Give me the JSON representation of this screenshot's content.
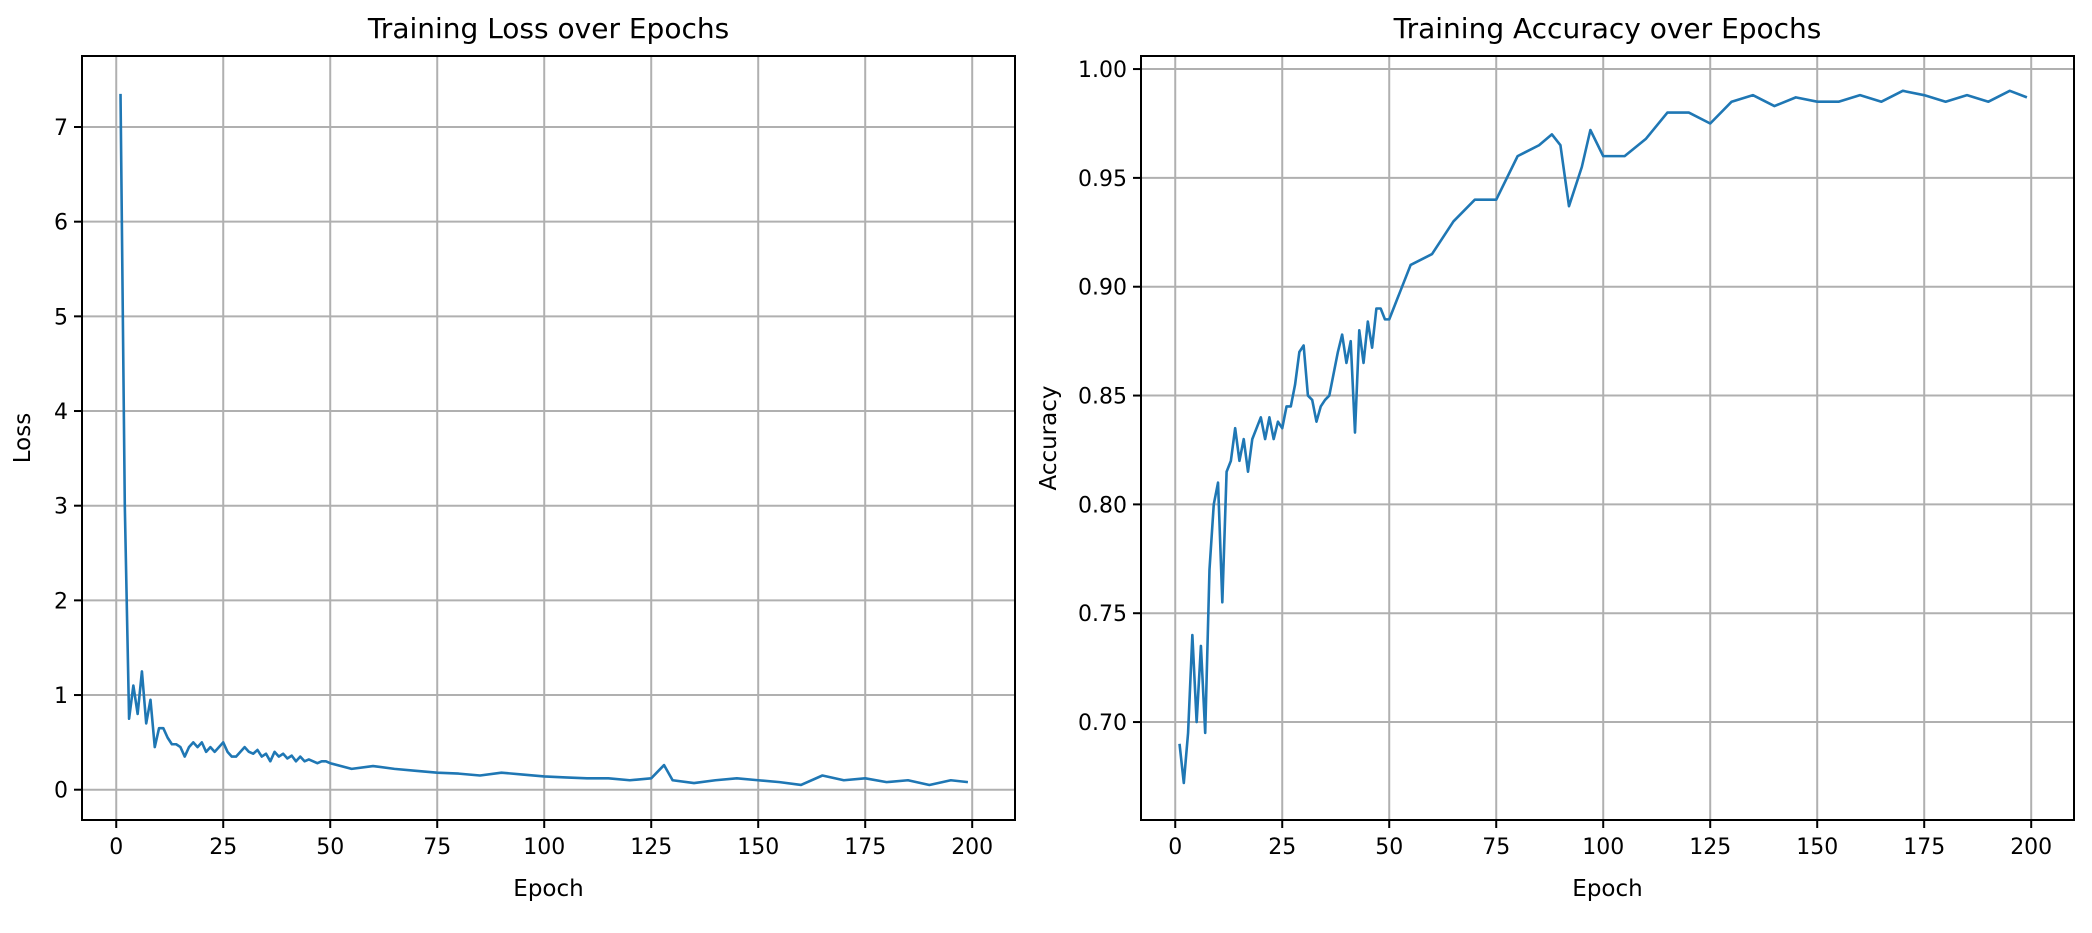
{
  "chart_data": [
    {
      "type": "line",
      "title": "Training Loss over Epochs",
      "xlabel": "Epoch",
      "ylabel": "Loss",
      "xlim": [
        -8,
        210
      ],
      "ylim": [
        -0.32,
        7.75
      ],
      "xticks": [
        0,
        25,
        50,
        75,
        100,
        125,
        150,
        175,
        200
      ],
      "yticks": [
        0,
        1,
        2,
        3,
        4,
        5,
        6,
        7
      ],
      "ytick_decimals": 0,
      "grid": true,
      "line_color": "#1f77b4",
      "series": [
        {
          "x": [
            1,
            2,
            3,
            4,
            5,
            6,
            7,
            8,
            9,
            10,
            11,
            12,
            13,
            14,
            15,
            16,
            17,
            18,
            19,
            20,
            21,
            22,
            23,
            24,
            25,
            26,
            27,
            28,
            29,
            30,
            31,
            32,
            33,
            34,
            35,
            36,
            37,
            38,
            39,
            40,
            41,
            42,
            43,
            44,
            45,
            46,
            47,
            48,
            49,
            50,
            55,
            60,
            65,
            70,
            75,
            80,
            85,
            90,
            95,
            100,
            105,
            110,
            115,
            120,
            125,
            128,
            130,
            135,
            140,
            145,
            150,
            155,
            160,
            165,
            170,
            175,
            180,
            185,
            190,
            195,
            199
          ],
          "y": [
            7.35,
            3.0,
            0.75,
            1.1,
            0.8,
            1.25,
            0.7,
            0.95,
            0.45,
            0.65,
            0.65,
            0.55,
            0.48,
            0.48,
            0.45,
            0.35,
            0.45,
            0.5,
            0.45,
            0.5,
            0.4,
            0.45,
            0.4,
            0.45,
            0.5,
            0.4,
            0.35,
            0.35,
            0.4,
            0.45,
            0.4,
            0.38,
            0.42,
            0.35,
            0.38,
            0.3,
            0.4,
            0.35,
            0.38,
            0.33,
            0.36,
            0.3,
            0.35,
            0.3,
            0.32,
            0.3,
            0.28,
            0.3,
            0.3,
            0.28,
            0.22,
            0.25,
            0.22,
            0.2,
            0.18,
            0.17,
            0.15,
            0.18,
            0.16,
            0.14,
            0.13,
            0.12,
            0.12,
            0.1,
            0.12,
            0.26,
            0.1,
            0.07,
            0.1,
            0.12,
            0.1,
            0.08,
            0.05,
            0.15,
            0.1,
            0.12,
            0.08,
            0.1,
            0.05,
            0.1,
            0.08
          ]
        }
      ]
    },
    {
      "type": "line",
      "title": "Training Accuracy over Epochs",
      "xlabel": "Epoch",
      "ylabel": "Accuracy",
      "xlim": [
        -8,
        210
      ],
      "ylim": [
        0.655,
        1.006
      ],
      "xticks": [
        0,
        25,
        50,
        75,
        100,
        125,
        150,
        175,
        200
      ],
      "yticks": [
        0.7,
        0.75,
        0.8,
        0.85,
        0.9,
        0.95,
        1.0
      ],
      "ytick_decimals": 2,
      "grid": true,
      "line_color": "#1f77b4",
      "series": [
        {
          "x": [
            1,
            2,
            3,
            4,
            5,
            6,
            7,
            8,
            9,
            10,
            11,
            12,
            13,
            14,
            15,
            16,
            17,
            18,
            19,
            20,
            21,
            22,
            23,
            24,
            25,
            26,
            27,
            28,
            29,
            30,
            31,
            32,
            33,
            34,
            35,
            36,
            37,
            38,
            39,
            40,
            41,
            42,
            43,
            44,
            45,
            46,
            47,
            48,
            49,
            50,
            55,
            60,
            65,
            70,
            75,
            80,
            85,
            88,
            90,
            92,
            95,
            97,
            100,
            105,
            110,
            115,
            120,
            125,
            130,
            135,
            140,
            145,
            150,
            155,
            160,
            165,
            170,
            175,
            180,
            185,
            190,
            195,
            199
          ],
          "y": [
            0.69,
            0.672,
            0.695,
            0.74,
            0.7,
            0.735,
            0.695,
            0.77,
            0.8,
            0.81,
            0.755,
            0.815,
            0.82,
            0.835,
            0.82,
            0.83,
            0.815,
            0.83,
            0.835,
            0.84,
            0.83,
            0.84,
            0.83,
            0.838,
            0.835,
            0.845,
            0.845,
            0.855,
            0.87,
            0.873,
            0.85,
            0.848,
            0.838,
            0.845,
            0.848,
            0.85,
            0.86,
            0.87,
            0.878,
            0.865,
            0.875,
            0.833,
            0.88,
            0.865,
            0.884,
            0.872,
            0.89,
            0.89,
            0.885,
            0.885,
            0.91,
            0.915,
            0.93,
            0.94,
            0.94,
            0.96,
            0.965,
            0.97,
            0.965,
            0.937,
            0.955,
            0.972,
            0.96,
            0.96,
            0.968,
            0.98,
            0.98,
            0.975,
            0.985,
            0.988,
            0.983,
            0.987,
            0.985,
            0.985,
            0.988,
            0.985,
            0.99,
            0.988,
            0.985,
            0.988,
            0.985,
            0.99,
            0.987
          ]
        }
      ]
    }
  ]
}
